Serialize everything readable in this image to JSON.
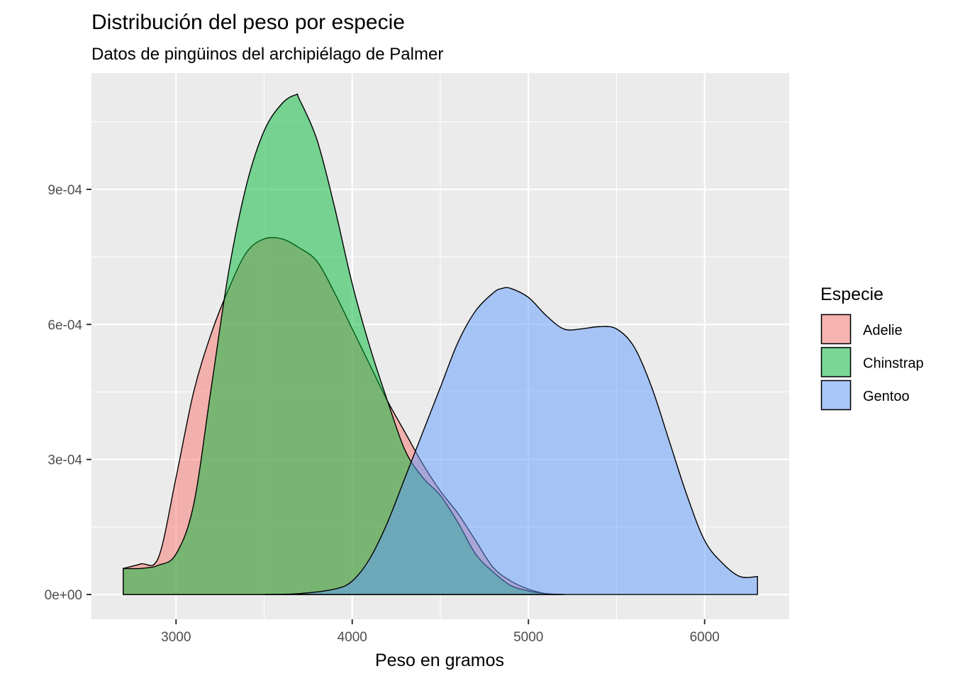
{
  "chart_data": {
    "type": "area",
    "title": "Distribución del peso por especie",
    "subtitle": "Datos de pingüinos del archipiélago de Palmer",
    "xlabel": "Peso en gramos",
    "ylabel": "",
    "xlim": [
      2520,
      6480
    ],
    "ylim": [
      -5.5e-05,
      0.0011583
    ],
    "x_ticks": [
      3000,
      4000,
      5000,
      6000
    ],
    "x_tick_labels": [
      "3000",
      "4000",
      "5000",
      "6000"
    ],
    "y_ticks": [
      0,
      0.0003,
      0.0006,
      0.0009
    ],
    "y_tick_labels": [
      "0e+00",
      "3e-04",
      "6e-04",
      "9e-04"
    ],
    "grid": true,
    "legend": {
      "title": "Especie",
      "position": "right"
    },
    "series": [
      {
        "name": "Adelie",
        "color": "#F8766D",
        "points": [
          [
            2700,
            5.8e-05
          ],
          [
            2800,
            6.8e-05
          ],
          [
            2900,
            8.2e-05
          ],
          [
            3000,
            0.00026
          ],
          [
            3100,
            0.00045
          ],
          [
            3200,
            0.00058
          ],
          [
            3300,
            0.00068
          ],
          [
            3400,
            0.00076
          ],
          [
            3500,
            0.00079
          ],
          [
            3600,
            0.00079
          ],
          [
            3700,
            0.00077
          ],
          [
            3800,
            0.00074
          ],
          [
            3900,
            0.00067
          ],
          [
            4000,
            0.00059
          ],
          [
            4100,
            0.00051
          ],
          [
            4200,
            0.00043
          ],
          [
            4300,
            0.00036
          ],
          [
            4400,
            0.00029
          ],
          [
            4500,
            0.00023
          ],
          [
            4600,
            0.00018
          ],
          [
            4700,
            0.00012
          ],
          [
            4800,
            6e-05
          ],
          [
            4900,
            3e-05
          ],
          [
            5000,
            1.2e-05
          ],
          [
            5100,
            2e-06
          ],
          [
            5200,
            0.0
          ]
        ]
      },
      {
        "name": "Chinstrap",
        "color": "#00BA38",
        "points": [
          [
            2700,
            5.8e-05
          ],
          [
            2800,
            5.8e-05
          ],
          [
            2900,
            6.5e-05
          ],
          [
            3000,
            9e-05
          ],
          [
            3100,
            0.0002
          ],
          [
            3200,
            0.00046
          ],
          [
            3300,
            0.00072
          ],
          [
            3400,
            0.00091
          ],
          [
            3500,
            0.00103
          ],
          [
            3600,
            0.00109
          ],
          [
            3680,
            0.00111
          ],
          [
            3700,
            0.0011
          ],
          [
            3800,
            0.00101
          ],
          [
            3900,
            0.00086
          ],
          [
            4000,
            0.00069
          ],
          [
            4100,
            0.00055
          ],
          [
            4200,
            0.00043
          ],
          [
            4300,
            0.00032
          ],
          [
            4400,
            0.00026
          ],
          [
            4500,
            0.00022
          ],
          [
            4600,
            0.00016
          ],
          [
            4700,
            9e-05
          ],
          [
            4800,
            5e-05
          ],
          [
            4900,
            2e-05
          ],
          [
            5000,
            8e-06
          ],
          [
            5100,
            2e-06
          ],
          [
            5200,
            0.0
          ]
        ]
      },
      {
        "name": "Gentoo",
        "color": "#619CFF",
        "points": [
          [
            3500,
            0.0
          ],
          [
            3700,
            2e-06
          ],
          [
            3900,
            1.2e-05
          ],
          [
            4000,
            3e-05
          ],
          [
            4100,
            8e-05
          ],
          [
            4200,
            0.00016
          ],
          [
            4300,
            0.00026
          ],
          [
            4400,
            0.00036
          ],
          [
            4500,
            0.00046
          ],
          [
            4600,
            0.00056
          ],
          [
            4700,
            0.00063
          ],
          [
            4800,
            0.00067
          ],
          [
            4850,
            0.00068
          ],
          [
            4900,
            0.00068
          ],
          [
            5000,
            0.00066
          ],
          [
            5100,
            0.00062
          ],
          [
            5200,
            0.00059
          ],
          [
            5300,
            0.00059
          ],
          [
            5400,
            0.000595
          ],
          [
            5500,
            0.00059
          ],
          [
            5600,
            0.00055
          ],
          [
            5700,
            0.00046
          ],
          [
            5800,
            0.00034
          ],
          [
            5900,
            0.00022
          ],
          [
            6000,
            0.00012
          ],
          [
            6100,
            7e-05
          ],
          [
            6200,
            4e-05
          ],
          [
            6300,
            4e-05
          ]
        ]
      }
    ]
  }
}
